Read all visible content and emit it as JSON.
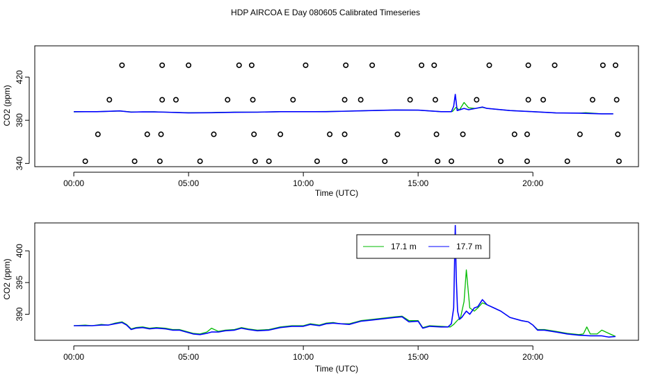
{
  "figure_title": "HDP AIRCOA E  Day 080605  Calibrated Timeseries",
  "chart_data": [
    {
      "type": "line",
      "panel": "top",
      "title": "",
      "xlabel": "Time (UTC)",
      "ylabel": "CO2 (ppm)",
      "xlim": [
        -1.7,
        24.6
      ],
      "ylim": [
        337,
        449
      ],
      "x_ticks": [
        0,
        5,
        10,
        15,
        20
      ],
      "x_tick_labels": [
        "00:00",
        "05:00",
        "10:00",
        "15:00",
        "20:00"
      ],
      "y_ticks": [
        340,
        380,
        420
      ],
      "y_tick_labels": [
        "340",
        "380",
        "420"
      ],
      "grid": false,
      "series": [
        {
          "color": "#00bb00",
          "x": [
            0,
            0.5,
            1,
            1.5,
            2,
            2.5,
            3,
            3.5,
            4,
            5,
            6,
            7,
            8,
            9,
            10,
            11,
            12,
            13,
            14,
            15,
            16,
            16.5,
            16.65,
            16.8,
            17,
            17.2,
            17.5,
            17.8,
            18,
            19,
            20,
            21,
            22,
            22.3,
            23,
            23.5
          ],
          "y": [
            387.8,
            388,
            388,
            388.3,
            388.6,
            387.8,
            387.8,
            387.9,
            387.5,
            387,
            387.2,
            387.6,
            387.5,
            388,
            388,
            388.2,
            388.5,
            389,
            389.5,
            389.4,
            388,
            388.2,
            392,
            389.5,
            396.5,
            391.5,
            391,
            392,
            391,
            389,
            388,
            386.8,
            386.6,
            387,
            386,
            386
          ]
        },
        {
          "color": "#0000ff",
          "x": [
            0,
            0.5,
            1,
            1.5,
            2,
            2.5,
            3,
            3.5,
            4,
            5,
            6,
            7,
            8,
            9,
            10,
            11,
            12,
            13,
            14,
            15,
            16,
            16.45,
            16.55,
            16.62,
            16.7,
            16.85,
            17,
            17.2,
            17.5,
            17.8,
            18,
            19,
            20,
            21,
            22,
            23,
            23.5
          ],
          "y": [
            388,
            388,
            388,
            388.3,
            388.7,
            387.5,
            387.8,
            387.7,
            387.5,
            386.8,
            387,
            387.4,
            387.5,
            388,
            388,
            388,
            388.5,
            389,
            389.5,
            389.4,
            388,
            388,
            393,
            404,
            389,
            390,
            391,
            389.8,
            391,
            392.3,
            391,
            389,
            388,
            386.8,
            386.6,
            386,
            386
          ]
        }
      ],
      "points": {
        "marker": "open-circle",
        "x": [
          2.1,
          3.85,
          5.0,
          7.2,
          7.75,
          10.1,
          11.85,
          13.0,
          15.15,
          15.7,
          18.1,
          19.8,
          20.95,
          23.05,
          23.6,
          1.55,
          3.85,
          4.45,
          6.7,
          7.8,
          9.55,
          11.8,
          12.5,
          14.65,
          15.75,
          17.55,
          19.8,
          20.45,
          22.6,
          23.65,
          1.05,
          3.2,
          3.8,
          6.1,
          7.85,
          9.0,
          11.15,
          11.8,
          14.1,
          15.8,
          16.95,
          19.2,
          19.75,
          22.05,
          23.7,
          0.5,
          2.65,
          3.75,
          5.5,
          7.9,
          8.5,
          10.6,
          11.8,
          13.55,
          15.85,
          16.45,
          18.6,
          19.75,
          21.5,
          23.75
        ],
        "y": [
          431,
          431,
          431,
          431,
          431,
          431,
          431,
          431,
          431,
          431,
          431,
          431,
          431,
          431,
          431,
          399,
          399,
          399,
          399,
          399,
          399,
          399,
          399,
          399,
          399,
          399,
          399,
          399,
          399,
          399,
          367,
          367,
          367,
          367,
          367,
          367,
          367,
          367,
          367,
          367,
          367,
          367,
          367,
          367,
          367,
          342,
          342,
          342,
          342,
          342,
          342,
          342,
          342,
          342,
          342,
          342,
          342,
          342,
          342,
          342
        ]
      }
    },
    {
      "type": "line",
      "panel": "bottom",
      "title": "",
      "xlabel": "Time (UTC)",
      "ylabel": "CO2 (ppm)",
      "xlim": [
        -1.7,
        24.6
      ],
      "ylim": [
        385.9,
        404.4
      ],
      "x_ticks": [
        0,
        5,
        10,
        15,
        20
      ],
      "x_tick_labels": [
        "00:00",
        "05:00",
        "10:00",
        "15:00",
        "20:00"
      ],
      "y_ticks": [
        390,
        395,
        400
      ],
      "y_tick_labels": [
        "390",
        "395",
        "400"
      ],
      "grid": false,
      "legend_position": "top-center",
      "series": [
        {
          "name": "17.1 m",
          "color": "#00bb00",
          "x": [
            0,
            0.5,
            0.8,
            1.2,
            1.5,
            1.8,
            2.1,
            2.3,
            2.5,
            2.7,
            3,
            3.3,
            3.6,
            4,
            4.3,
            4.6,
            4.9,
            5.2,
            5.5,
            5.8,
            6,
            6.3,
            6.6,
            7,
            7.3,
            7.6,
            8,
            8.5,
            9,
            9.5,
            10,
            10.3,
            10.7,
            11,
            11.3,
            11.6,
            12,
            12.5,
            13,
            13.5,
            14,
            14.3,
            14.6,
            15,
            15.2,
            15.5,
            16,
            16.4,
            16.55,
            16.7,
            16.85,
            17,
            17.1,
            17.25,
            17.45,
            17.6,
            17.8,
            18,
            18.3,
            18.6,
            19,
            19.5,
            19.8,
            20,
            20.2,
            20.5,
            21,
            21.5,
            22,
            22.2,
            22.35,
            22.5,
            22.8,
            23,
            23.3,
            23.6
          ],
          "y": [
            388.2,
            388.3,
            388.2,
            388.4,
            388.3,
            388.6,
            388.8,
            388.4,
            387.7,
            387.9,
            388.0,
            387.8,
            387.9,
            387.8,
            387.6,
            387.6,
            387.3,
            387.0,
            386.9,
            387.2,
            387.8,
            387.3,
            387.5,
            387.6,
            387.9,
            387.7,
            387.5,
            387.6,
            388.0,
            388.2,
            388.2,
            388.5,
            388.3,
            388.6,
            388.7,
            388.5,
            388.5,
            389.0,
            389.2,
            389.4,
            389.6,
            389.7,
            389.0,
            389.0,
            387.9,
            388.2,
            388.1,
            388.0,
            388.4,
            389.0,
            389.5,
            392.0,
            397.0,
            391.0,
            390.5,
            391.0,
            391.8,
            391.5,
            391.0,
            390.5,
            389.5,
            389.0,
            388.8,
            388.3,
            387.6,
            387.6,
            387.3,
            387.0,
            386.8,
            386.9,
            388.0,
            386.9,
            386.9,
            387.5,
            387.0,
            386.5
          ]
        },
        {
          "name": "17.7 m",
          "color": "#0000ff",
          "x": [
            0,
            0.5,
            0.8,
            1.2,
            1.5,
            1.8,
            2.1,
            2.3,
            2.5,
            2.7,
            3,
            3.3,
            3.6,
            4,
            4.3,
            4.6,
            4.9,
            5.2,
            5.5,
            5.8,
            6,
            6.3,
            6.6,
            7,
            7.3,
            7.6,
            8,
            8.5,
            9,
            9.5,
            10,
            10.3,
            10.7,
            11,
            11.3,
            11.6,
            12,
            12.5,
            13,
            13.5,
            14,
            14.3,
            14.6,
            15,
            15.2,
            15.5,
            16,
            16.3,
            16.45,
            16.55,
            16.62,
            16.66,
            16.72,
            16.8,
            16.9,
            17,
            17.1,
            17.25,
            17.45,
            17.6,
            17.8,
            18,
            18.3,
            18.6,
            19,
            19.5,
            19.8,
            20,
            20.2,
            20.5,
            21,
            21.5,
            22,
            22.5,
            23,
            23.3,
            23.6
          ],
          "y": [
            388.2,
            388.2,
            388.2,
            388.3,
            388.3,
            388.5,
            388.7,
            388.3,
            387.6,
            387.8,
            387.9,
            387.7,
            387.8,
            387.7,
            387.5,
            387.5,
            387.2,
            386.9,
            386.8,
            387.0,
            387.2,
            387.2,
            387.4,
            387.5,
            387.8,
            387.6,
            387.4,
            387.5,
            387.9,
            388.1,
            388.1,
            388.4,
            388.2,
            388.5,
            388.6,
            388.5,
            388.4,
            388.9,
            389.1,
            389.3,
            389.5,
            389.6,
            388.8,
            388.9,
            387.8,
            388.1,
            388.0,
            388.0,
            388.5,
            391.0,
            404.0,
            396.0,
            390.5,
            389.2,
            389.5,
            390.0,
            390.5,
            390.0,
            391.0,
            391.2,
            392.3,
            391.5,
            391.0,
            390.5,
            389.5,
            389.0,
            388.8,
            388.3,
            387.5,
            387.5,
            387.2,
            386.9,
            386.7,
            386.6,
            386.6,
            386.4,
            386.5
          ]
        }
      ]
    }
  ]
}
